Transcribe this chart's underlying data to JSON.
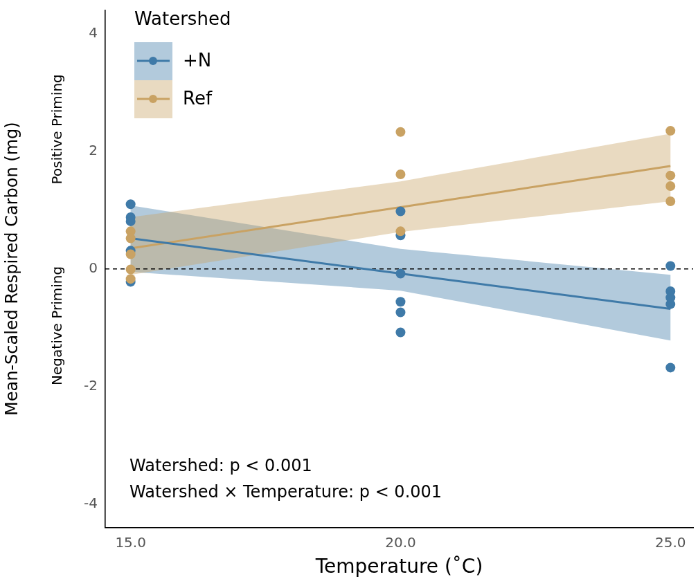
{
  "chart_data": {
    "type": "scatter",
    "xlabel": "Temperature (˚C)",
    "ylabel": "Mean-Scaled Respired Carbon (mg)",
    "legend_title": "Watershed",
    "legend": "top left",
    "grid": false,
    "marker": "circle",
    "xlim": [
      14.53,
      25.42
    ],
    "xticks": [
      {
        "value": 15,
        "label": "15.0"
      },
      {
        "value": 20,
        "label": "20.0"
      },
      {
        "value": 25,
        "label": "25.0"
      }
    ],
    "ylim": [
      -4.4,
      4.4
    ],
    "yticks": [
      -4,
      -2,
      0,
      2,
      4
    ],
    "series": [
      {
        "color": "#3f7aa8",
        "x": [
          15,
          15,
          15,
          15,
          15,
          20,
          20,
          20,
          20,
          20,
          20,
          25,
          25,
          25,
          25,
          25
        ],
        "values": [
          1.1,
          0.88,
          0.81,
          0.31,
          -0.22,
          0.98,
          0.57,
          -0.08,
          -0.56,
          -0.74,
          -1.08,
          0.05,
          -0.38,
          -0.49,
          -0.6,
          -1.68
        ]
      },
      {
        "color": "#c9a263",
        "x": [
          15,
          15,
          15,
          15,
          15,
          20,
          20,
          20,
          25,
          25,
          25,
          25
        ],
        "values": [
          0.64,
          0.52,
          0.25,
          -0.01,
          -0.17,
          2.33,
          1.61,
          0.64,
          2.35,
          1.59,
          1.41,
          1.15
        ]
      },
      {
        "type": "line",
        "name": "+N",
        "marker": "none",
        "color": "#3f7aa8",
        "x": [
          15,
          20,
          25
        ],
        "values": [
          0.52,
          -0.08,
          -0.68
        ],
        "lower": [
          -0.05,
          -0.37,
          -1.22
        ],
        "upper": [
          1.08,
          0.34,
          -0.1
        ]
      },
      {
        "type": "line",
        "name": "Ref",
        "marker": "none",
        "color": "#c9a263",
        "x": [
          15,
          20,
          25
        ],
        "values": [
          0.35,
          1.05,
          1.75
        ],
        "lower": [
          -0.1,
          0.63,
          1.15
        ],
        "upper": [
          0.88,
          1.49,
          2.3
        ]
      }
    ],
    "ref_lines": [
      {
        "axis": "y",
        "value": 0,
        "line_style": "dashed",
        "color": "#000000"
      }
    ],
    "annotations": [
      "Positive Priming",
      "Negative Priming",
      "Watershed: p < 0.001",
      "Watershed × Temperature: p < 0.001"
    ]
  }
}
